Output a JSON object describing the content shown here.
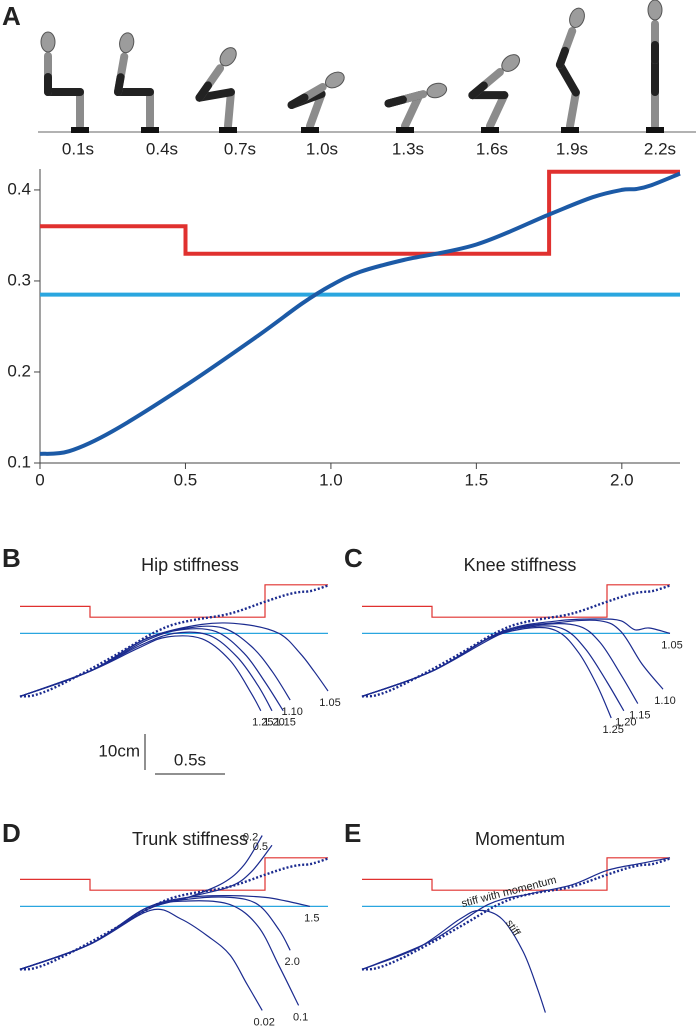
{
  "chart_data": [
    {
      "type": "line",
      "panel": "A",
      "frame_labels": [
        "0.1s",
        "0.4s",
        "0.7s",
        "1.0s",
        "1.3s",
        "1.6s",
        "1.9s",
        "2.2s"
      ],
      "xlim": [
        0,
        2.2
      ],
      "ylim": [
        0.1,
        0.423
      ],
      "xticks": [
        0,
        0.5,
        {
          "value": 1,
          "label": "1.0"
        },
        1.5,
        {
          "value": 2,
          "label": "2.0"
        }
      ],
      "yticks": [
        0.1,
        0.2,
        0.3,
        0.4
      ],
      "series": [
        {
          "color": "#e0312f",
          "x": [
            0,
            0.5,
            0.5,
            1.75,
            1.75,
            2.2
          ],
          "values": [
            0.36,
            0.36,
            0.33,
            0.33,
            0.42,
            0.42
          ]
        },
        {
          "color": "#2aa6df",
          "x": [
            0,
            2.2
          ],
          "values": [
            0.285,
            0.285
          ]
        },
        {
          "color": "#1c5aa6",
          "smooth": true,
          "x": [
            0,
            0.1,
            0.25,
            0.5,
            0.75,
            0.9,
            1.0,
            1.1,
            1.25,
            1.5,
            1.75,
            1.9,
            2.0,
            2.05,
            2.1,
            2.2
          ],
          "values": [
            0.11,
            0.113,
            0.135,
            0.185,
            0.24,
            0.275,
            0.295,
            0.31,
            0.323,
            0.34,
            0.373,
            0.392,
            0.4,
            0.401,
            0.405,
            0.418
          ]
        }
      ]
    },
    {
      "type": "line",
      "panel": "B",
      "title": "Hip stiffness",
      "series_labels": "end",
      "scale_bar": {
        "y": 0.1,
        "y_label": "10cm",
        "x": 0.5,
        "x_label": "0.5s"
      },
      "series": [
        {
          "name": "1.05",
          "color": "#1b2b8f",
          "x": [
            0,
            0.5,
            0.9,
            1.3,
            1.6,
            1.85,
            2.0,
            2.1,
            2.2
          ],
          "values": [
            0.11,
            0.18,
            0.27,
            0.31,
            0.31,
            0.285,
            0.23,
            0.18,
            0.125
          ]
        },
        {
          "name": "1.10",
          "color": "#1b2b8f",
          "x": [
            0,
            0.5,
            0.9,
            1.2,
            1.45,
            1.65,
            1.8,
            1.93
          ],
          "values": [
            0.11,
            0.18,
            0.27,
            0.3,
            0.3,
            0.25,
            0.18,
            0.1
          ]
        },
        {
          "name": "1.15",
          "color": "#1b2b8f",
          "x": [
            0,
            0.5,
            0.9,
            1.15,
            1.4,
            1.6,
            1.75,
            1.88
          ],
          "values": [
            0.11,
            0.18,
            0.265,
            0.295,
            0.29,
            0.23,
            0.15,
            0.07
          ]
        },
        {
          "name": "1.20",
          "color": "#1b2b8f",
          "x": [
            0,
            0.5,
            0.85,
            1.1,
            1.35,
            1.55,
            1.7,
            1.8
          ],
          "values": [
            0.11,
            0.18,
            0.25,
            0.285,
            0.28,
            0.22,
            0.14,
            0.07
          ]
        },
        {
          "name": "1.25",
          "color": "#1b2b8f",
          "x": [
            0,
            0.5,
            0.85,
            1.05,
            1.3,
            1.5,
            1.65,
            1.72
          ],
          "values": [
            0.11,
            0.18,
            0.245,
            0.275,
            0.27,
            0.21,
            0.12,
            0.07
          ]
        }
      ]
    },
    {
      "type": "line",
      "panel": "C",
      "title": "Knee stiffness",
      "series_labels": "end",
      "series": [
        {
          "name": "1.05",
          "color": "#1b2b8f",
          "x": [
            0,
            0.5,
            1.0,
            1.4,
            1.7,
            1.85,
            1.95,
            2.05,
            2.2
          ],
          "values": [
            0.11,
            0.18,
            0.29,
            0.32,
            0.325,
            0.32,
            0.295,
            0.3,
            0.285
          ]
        },
        {
          "name": "1.10",
          "color": "#1b2b8f",
          "x": [
            0,
            0.5,
            1.0,
            1.4,
            1.7,
            1.85,
            2.0,
            2.15
          ],
          "values": [
            0.11,
            0.18,
            0.29,
            0.315,
            0.32,
            0.29,
            0.2,
            0.13
          ]
        },
        {
          "name": "1.15",
          "color": "#1b2b8f",
          "x": [
            0,
            0.5,
            1.0,
            1.3,
            1.55,
            1.7,
            1.85,
            1.97
          ],
          "values": [
            0.11,
            0.18,
            0.285,
            0.31,
            0.305,
            0.26,
            0.17,
            0.09
          ]
        },
        {
          "name": "1.20",
          "color": "#1b2b8f",
          "x": [
            0,
            0.5,
            0.95,
            1.25,
            1.45,
            1.6,
            1.75,
            1.87
          ],
          "values": [
            0.11,
            0.18,
            0.28,
            0.305,
            0.295,
            0.24,
            0.15,
            0.07
          ]
        },
        {
          "name": "1.25",
          "color": "#1b2b8f",
          "x": [
            0,
            0.5,
            0.9,
            1.2,
            1.4,
            1.55,
            1.68,
            1.78
          ],
          "values": [
            0.11,
            0.18,
            0.27,
            0.3,
            0.29,
            0.23,
            0.14,
            0.05
          ]
        }
      ]
    },
    {
      "type": "line",
      "panel": "D",
      "title": "Trunk stiffness",
      "series_labels": "end",
      "series": [
        {
          "name": "0.2",
          "color": "#1b2b8f",
          "x": [
            0,
            0.5,
            0.9,
            1.2,
            1.45,
            1.6,
            1.73
          ],
          "values": [
            0.11,
            0.18,
            0.275,
            0.31,
            0.35,
            0.4,
            0.482
          ]
        },
        {
          "name": "0.5",
          "color": "#1b2b8f",
          "x": [
            0,
            0.5,
            0.9,
            1.2,
            1.5,
            1.65,
            1.8
          ],
          "values": [
            0.11,
            0.18,
            0.275,
            0.31,
            0.34,
            0.38,
            0.455
          ]
        },
        {
          "name": "1.5",
          "color": "#1b2b8f",
          "x": [
            0,
            0.5,
            0.9,
            1.2,
            1.5,
            1.75,
            1.9,
            2.07
          ],
          "values": [
            0.11,
            0.18,
            0.28,
            0.31,
            0.315,
            0.31,
            0.3,
            0.285
          ]
        },
        {
          "name": "2.0",
          "color": "#1b2b8f",
          "x": [
            0,
            0.5,
            0.9,
            1.2,
            1.5,
            1.7,
            1.85,
            1.93
          ],
          "values": [
            0.11,
            0.18,
            0.28,
            0.305,
            0.31,
            0.29,
            0.22,
            0.163
          ]
        },
        {
          "name": "0.1",
          "color": "#1b2b8f",
          "x": [
            0,
            0.5,
            0.9,
            1.2,
            1.5,
            1.7,
            1.85,
            1.99
          ],
          "values": [
            0.11,
            0.18,
            0.28,
            0.3,
            0.29,
            0.23,
            0.12,
            0.01
          ]
        },
        {
          "name": "0.02",
          "color": "#1b2b8f",
          "x": [
            0,
            0.5,
            0.93,
            1.15,
            1.35,
            1.5,
            1.62,
            1.73
          ],
          "values": [
            0.11,
            0.18,
            0.274,
            0.25,
            0.2,
            0.15,
            0.07,
            -0.004
          ]
        }
      ]
    },
    {
      "type": "line",
      "panel": "E",
      "title": "Momentum",
      "series_labels": "along-curve",
      "series": [
        {
          "name": "stiff with momentum",
          "color": "#1b2b8f",
          "x": [
            0,
            0.5,
            0.9,
            1.2,
            1.5,
            1.75,
            2.0,
            2.2
          ],
          "values": [
            0.11,
            0.19,
            0.29,
            0.32,
            0.345,
            0.385,
            0.405,
            0.42
          ]
        },
        {
          "name": "stiff",
          "color": "#1b2b8f",
          "x": [
            0,
            0.4,
            0.7,
            0.84,
            1.0,
            1.15,
            1.25,
            1.31
          ],
          "values": [
            0.11,
            0.17,
            0.25,
            0.274,
            0.25,
            0.16,
            0.06,
            -0.01
          ]
        }
      ]
    }
  ]
}
